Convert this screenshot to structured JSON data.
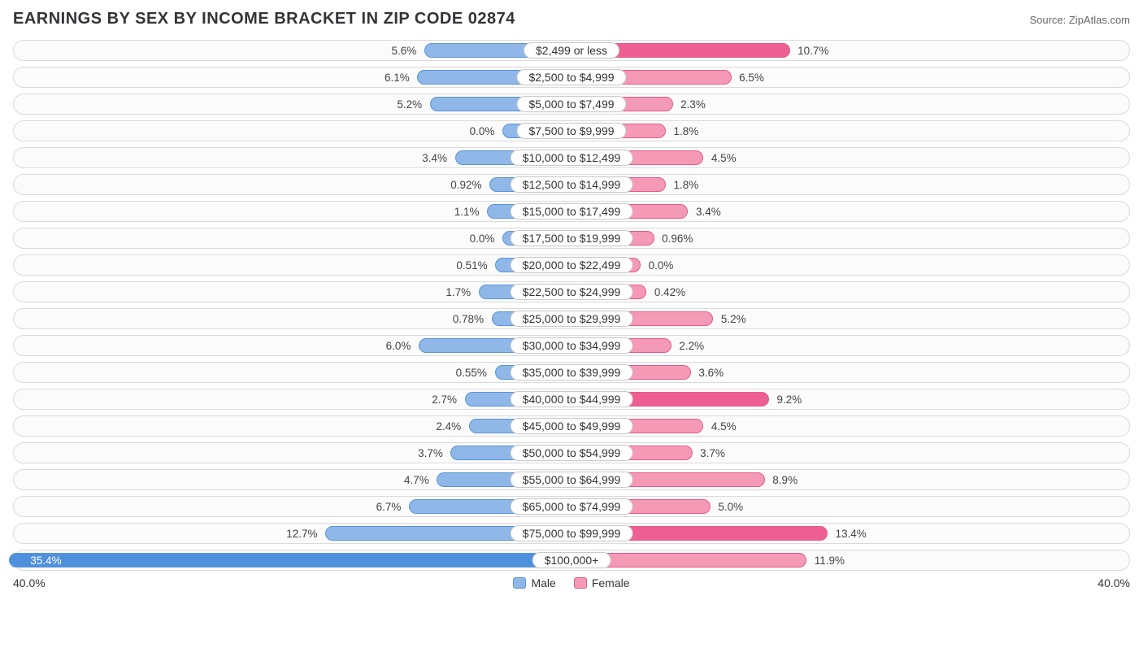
{
  "title": "EARNINGS BY SEX BY INCOME BRACKET IN ZIP CODE 02874",
  "source": "Source: ZipAtlas.com",
  "axis_max_label": "40.0%",
  "axis_max": 40.0,
  "legend": {
    "male": "Male",
    "female": "Female"
  },
  "colors": {
    "male_fill": "#8fb8e8",
    "male_border": "#5a94d6",
    "male_highlight": "#4f90dd",
    "female_fill": "#f49ab6",
    "female_border": "#e65a8a",
    "female_highlight": "#ee5f91",
    "track_border": "#dadada",
    "track_bg": "#fbfbfb",
    "text": "#333338",
    "source_text": "#666666"
  },
  "label_halfwidth_pct": 6.2,
  "rows": [
    {
      "label": "$2,499 or less",
      "male": 5.6,
      "male_txt": "5.6%",
      "female": 10.7,
      "female_txt": "10.7%",
      "female_hl": true
    },
    {
      "label": "$2,500 to $4,999",
      "male": 6.1,
      "male_txt": "6.1%",
      "female": 6.5,
      "female_txt": "6.5%"
    },
    {
      "label": "$5,000 to $7,499",
      "male": 5.2,
      "male_txt": "5.2%",
      "female": 2.3,
      "female_txt": "2.3%"
    },
    {
      "label": "$7,500 to $9,999",
      "male": 0.0,
      "male_txt": "0.0%",
      "female": 1.8,
      "female_txt": "1.8%"
    },
    {
      "label": "$10,000 to $12,499",
      "male": 3.4,
      "male_txt": "3.4%",
      "female": 4.5,
      "female_txt": "4.5%"
    },
    {
      "label": "$12,500 to $14,999",
      "male": 0.92,
      "male_txt": "0.92%",
      "female": 1.8,
      "female_txt": "1.8%"
    },
    {
      "label": "$15,000 to $17,499",
      "male": 1.1,
      "male_txt": "1.1%",
      "female": 3.4,
      "female_txt": "3.4%"
    },
    {
      "label": "$17,500 to $19,999",
      "male": 0.0,
      "male_txt": "0.0%",
      "female": 0.96,
      "female_txt": "0.96%"
    },
    {
      "label": "$20,000 to $22,499",
      "male": 0.51,
      "male_txt": "0.51%",
      "female": 0.0,
      "female_txt": "0.0%"
    },
    {
      "label": "$22,500 to $24,999",
      "male": 1.7,
      "male_txt": "1.7%",
      "female": 0.42,
      "female_txt": "0.42%"
    },
    {
      "label": "$25,000 to $29,999",
      "male": 0.78,
      "male_txt": "0.78%",
      "female": 5.2,
      "female_txt": "5.2%"
    },
    {
      "label": "$30,000 to $34,999",
      "male": 6.0,
      "male_txt": "6.0%",
      "female": 2.2,
      "female_txt": "2.2%"
    },
    {
      "label": "$35,000 to $39,999",
      "male": 0.55,
      "male_txt": "0.55%",
      "female": 3.6,
      "female_txt": "3.6%"
    },
    {
      "label": "$40,000 to $44,999",
      "male": 2.7,
      "male_txt": "2.7%",
      "female": 9.2,
      "female_txt": "9.2%",
      "female_hl": true
    },
    {
      "label": "$45,000 to $49,999",
      "male": 2.4,
      "male_txt": "2.4%",
      "female": 4.5,
      "female_txt": "4.5%"
    },
    {
      "label": "$50,000 to $54,999",
      "male": 3.7,
      "male_txt": "3.7%",
      "female": 3.7,
      "female_txt": "3.7%"
    },
    {
      "label": "$55,000 to $64,999",
      "male": 4.7,
      "male_txt": "4.7%",
      "female": 8.9,
      "female_txt": "8.9%"
    },
    {
      "label": "$65,000 to $74,999",
      "male": 6.7,
      "male_txt": "6.7%",
      "female": 5.0,
      "female_txt": "5.0%"
    },
    {
      "label": "$75,000 to $99,999",
      "male": 12.7,
      "male_txt": "12.7%",
      "female": 13.4,
      "female_txt": "13.4%",
      "female_hl": true
    },
    {
      "label": "$100,000+",
      "male": 35.4,
      "male_txt": "35.4%",
      "male_hl": true,
      "male_inside": true,
      "female": 11.9,
      "female_txt": "11.9%"
    }
  ]
}
